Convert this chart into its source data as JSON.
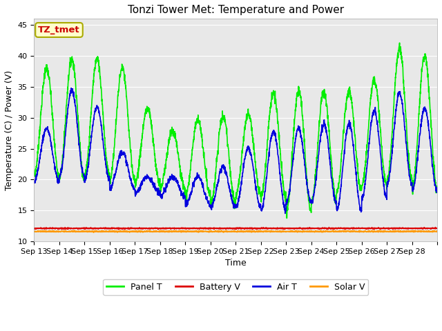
{
  "title": "Tonzi Tower Met: Temperature and Power",
  "ylabel": "Temperature (C) / Power (V)",
  "xlabel": "Time",
  "ylim": [
    10,
    46
  ],
  "xlim": [
    0,
    16
  ],
  "x_tick_labels": [
    "Sep 13",
    "Sep 14",
    "Sep 15",
    "Sep 16",
    "Sep 17",
    "Sep 18",
    "Sep 19",
    "Sep 20",
    "Sep 21",
    "Sep 22",
    "Sep 23",
    "Sep 24",
    "Sep 25",
    "Sep 26",
    "Sep 27",
    "Sep 28"
  ],
  "annotation_text": "TZ_tmet",
  "annotation_color": "#cc0000",
  "annotation_bg": "#ffffcc",
  "annotation_edge": "#aaaa00",
  "bg_color": "#e8e8e8",
  "panel_T_color": "#00ee00",
  "battery_V_color": "#dd0000",
  "air_T_color": "#0000dd",
  "solar_V_color": "#ff9900",
  "lw": 1.2,
  "grid_color": "#ffffff",
  "title_fontsize": 11,
  "label_fontsize": 9,
  "tick_fontsize": 8,
  "yticks": [
    10,
    15,
    20,
    25,
    30,
    35,
    40,
    45
  ],
  "panel_peaks": [
    35,
    41,
    38,
    41,
    35,
    28,
    28,
    31.5,
    29,
    32,
    36,
    33,
    35.5,
    33,
    39.5,
    43,
    37
  ],
  "panel_troughs": [
    22,
    19.5,
    21,
    20,
    20,
    19,
    18,
    17,
    15,
    20,
    14.5,
    15,
    18,
    18,
    20,
    20,
    17
  ],
  "air_peaks": [
    22,
    34.5,
    34.5,
    29,
    20,
    21,
    20,
    21,
    23,
    27,
    28.5,
    28,
    30,
    28,
    34,
    34,
    29
  ],
  "air_troughs": [
    19.5,
    20,
    21,
    19,
    18,
    17.5,
    17,
    15,
    16,
    15,
    15,
    17.5,
    15,
    15,
    19,
    19.5,
    17
  ],
  "battery_V": 12.1,
  "solar_V": 11.6
}
